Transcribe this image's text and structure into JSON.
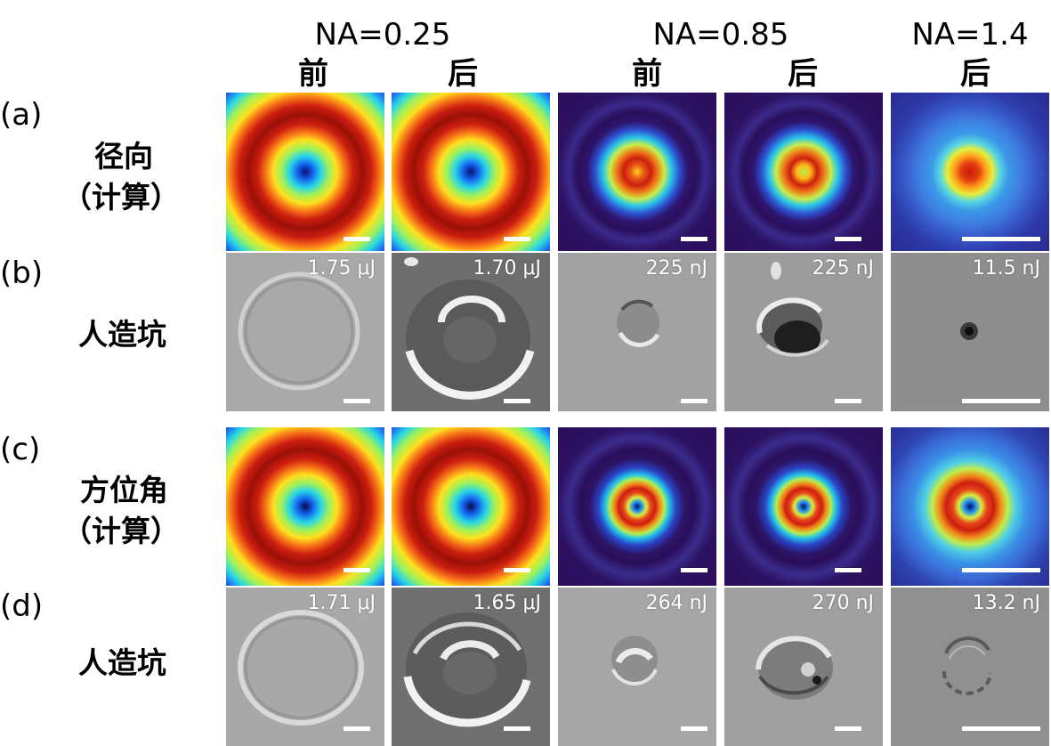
{
  "headers": {
    "na_labels": [
      "NA=0.25",
      "NA=0.85",
      "NA=1.4"
    ],
    "before_after": [
      "前",
      "后",
      "前",
      "后",
      "后"
    ]
  },
  "rows": {
    "a": {
      "tag": "(a)",
      "label_line1": "径向",
      "label_line2": "（计算）"
    },
    "b": {
      "tag": "(b)",
      "label": "人造坑",
      "energies": [
        "1.75 μJ",
        "1.70 μJ",
        "225 nJ",
        "225 nJ",
        "11.5 nJ"
      ]
    },
    "c": {
      "tag": "(c)",
      "label_line1": "方位角",
      "label_line2": "（计算）"
    },
    "d": {
      "tag": "(d)",
      "label": "人造坑",
      "energies": [
        "1.71 μJ",
        "1.65 μJ",
        "264 nJ",
        "270 nJ",
        "13.2 nJ"
      ]
    }
  },
  "colors": {
    "sim_background": "#2b0e5c",
    "scale_bar": "#ffffff",
    "sem_gray": "#a6a6a6"
  }
}
